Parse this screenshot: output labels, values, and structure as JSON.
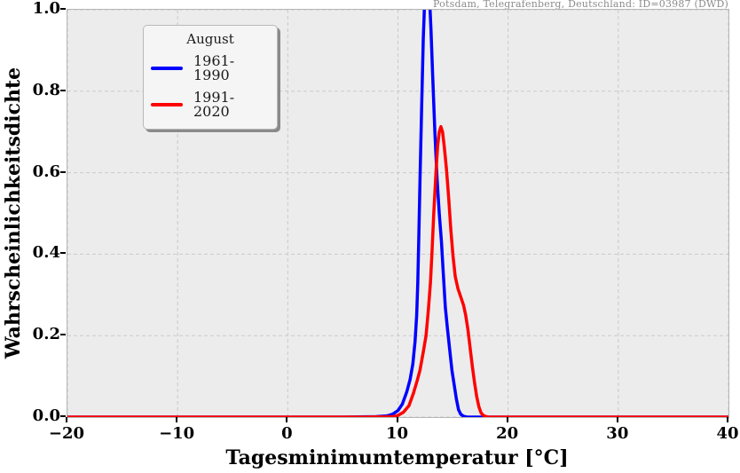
{
  "station_label": "Potsdam, Telegrafenberg, Deutschland: ID=03987 (DWD)",
  "colors": {
    "figure_background": "#ffffff",
    "plot_background": "#ececec",
    "grid": "#c9c9c9",
    "spine": "#b6b6b6",
    "tick": "#000000",
    "series_1961_1990": "#0000ff",
    "series_1991_2020": "#ff0000",
    "station_text": "#8c8c8c"
  },
  "chart_data": {
    "type": "line",
    "title": "",
    "xlabel": "Tagesminimumtemperatur [°C]",
    "ylabel": "Wahrscheinlichkeitsdichte",
    "xlim": [
      -20,
      40
    ],
    "ylim": [
      0,
      1.0
    ],
    "grid": "dashed",
    "x_ticks": [
      {
        "value": -20,
        "label": "−20"
      },
      {
        "value": -10,
        "label": "−10"
      },
      {
        "value": 0,
        "label": "0"
      },
      {
        "value": 10,
        "label": "10"
      },
      {
        "value": 20,
        "label": "20"
      },
      {
        "value": 30,
        "label": "30"
      },
      {
        "value": 40,
        "label": "40"
      }
    ],
    "y_ticks": [
      {
        "value": 0.0,
        "label": "0.0"
      },
      {
        "value": 0.2,
        "label": "0.2"
      },
      {
        "value": 0.4,
        "label": "0.4"
      },
      {
        "value": 0.6,
        "label": "0.6"
      },
      {
        "value": 0.8,
        "label": "0.8"
      },
      {
        "value": 1.0,
        "label": "1.0"
      }
    ],
    "legend": {
      "title": "August",
      "position": "upper-left",
      "entries": [
        {
          "label": "1961-1990",
          "color": "#0000ff"
        },
        {
          "label": "1991-2020",
          "color": "#ff0000"
        }
      ]
    },
    "series": [
      {
        "name": "1961-1990",
        "color": "#0000ff",
        "note": "density curve clipped at ylim top; true peak ~1.1 at ~12.6 degC",
        "points": [
          [
            -20,
            0
          ],
          [
            5,
            0
          ],
          [
            8,
            0.001
          ],
          [
            9,
            0.003
          ],
          [
            9.5,
            0.007
          ],
          [
            10,
            0.016
          ],
          [
            10.4,
            0.032
          ],
          [
            10.8,
            0.062
          ],
          [
            11.1,
            0.092
          ],
          [
            11.35,
            0.13
          ],
          [
            11.55,
            0.185
          ],
          [
            11.7,
            0.25
          ],
          [
            11.8,
            0.33
          ],
          [
            11.9,
            0.45
          ],
          [
            12.0,
            0.58
          ],
          [
            12.15,
            0.76
          ],
          [
            12.3,
            0.93
          ],
          [
            12.45,
            1.04
          ],
          [
            12.6,
            1.095
          ],
          [
            12.75,
            1.08
          ],
          [
            12.9,
            1.01
          ],
          [
            13.0,
            0.95
          ],
          [
            13.15,
            0.84
          ],
          [
            13.35,
            0.7
          ],
          [
            13.55,
            0.585
          ],
          [
            13.75,
            0.5
          ],
          [
            13.95,
            0.43
          ],
          [
            14.1,
            0.36
          ],
          [
            14.3,
            0.27
          ],
          [
            14.5,
            0.215
          ],
          [
            14.7,
            0.165
          ],
          [
            14.9,
            0.115
          ],
          [
            15.1,
            0.08
          ],
          [
            15.3,
            0.045
          ],
          [
            15.5,
            0.018
          ],
          [
            15.7,
            0.007
          ],
          [
            15.95,
            0.002
          ],
          [
            16.3,
            0
          ],
          [
            40,
            0
          ]
        ]
      },
      {
        "name": "1991-2020",
        "color": "#ff0000",
        "note": "peak ~0.71 at ~13.9 degC with shoulder near 15.5-16",
        "points": [
          [
            -20,
            0
          ],
          [
            7,
            0
          ],
          [
            9.5,
            0.001
          ],
          [
            10,
            0.004
          ],
          [
            10.5,
            0.012
          ],
          [
            11,
            0.028
          ],
          [
            11.4,
            0.058
          ],
          [
            11.75,
            0.09
          ],
          [
            12,
            0.115
          ],
          [
            12.3,
            0.16
          ],
          [
            12.55,
            0.2
          ],
          [
            12.75,
            0.26
          ],
          [
            12.95,
            0.33
          ],
          [
            13.1,
            0.41
          ],
          [
            13.25,
            0.5
          ],
          [
            13.45,
            0.6
          ],
          [
            13.6,
            0.665
          ],
          [
            13.75,
            0.7
          ],
          [
            13.9,
            0.713
          ],
          [
            14.05,
            0.7
          ],
          [
            14.2,
            0.665
          ],
          [
            14.4,
            0.61
          ],
          [
            14.6,
            0.54
          ],
          [
            14.8,
            0.46
          ],
          [
            15.0,
            0.395
          ],
          [
            15.2,
            0.345
          ],
          [
            15.45,
            0.315
          ],
          [
            15.7,
            0.295
          ],
          [
            15.95,
            0.275
          ],
          [
            16.15,
            0.25
          ],
          [
            16.35,
            0.215
          ],
          [
            16.55,
            0.17
          ],
          [
            16.75,
            0.125
          ],
          [
            16.95,
            0.085
          ],
          [
            17.15,
            0.05
          ],
          [
            17.35,
            0.025
          ],
          [
            17.55,
            0.01
          ],
          [
            17.8,
            0.003
          ],
          [
            18.2,
            0
          ],
          [
            40,
            0
          ]
        ]
      }
    ]
  }
}
